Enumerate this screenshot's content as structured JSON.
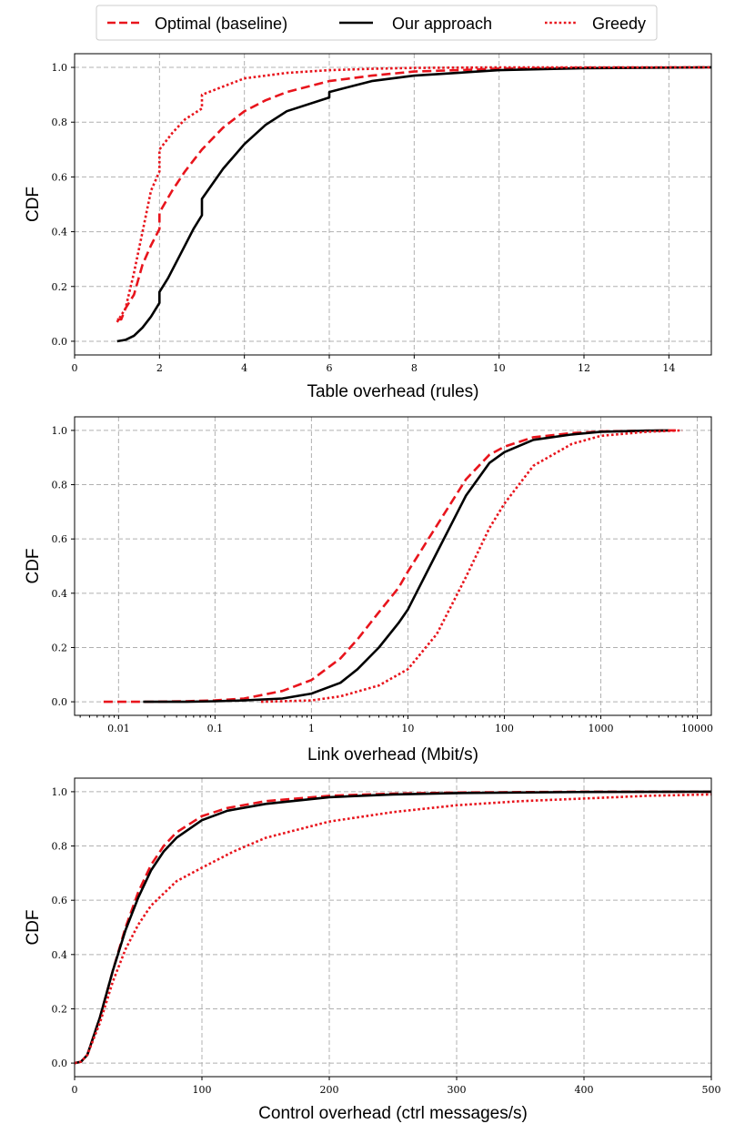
{
  "legend": {
    "items": [
      {
        "label": "Optimal (baseline)",
        "color": "#e8141c",
        "style": "dashed"
      },
      {
        "label": "Our approach",
        "color": "#000000",
        "style": "solid"
      },
      {
        "label": "Greedy",
        "color": "#e8141c",
        "style": "dotted"
      }
    ]
  },
  "chart_data": [
    {
      "type": "line",
      "title": "",
      "xlabel": "Table overhead (rules)",
      "ylabel": "CDF",
      "xscale": "linear",
      "xlim": [
        0,
        15
      ],
      "ylim": [
        -0.05,
        1.05
      ],
      "xticks": [
        0,
        2,
        4,
        6,
        8,
        10,
        12,
        14
      ],
      "xtick_labels": [
        "0",
        "2",
        "4",
        "6",
        "8",
        "10",
        "12",
        "14"
      ],
      "yticks": [
        0,
        0.2,
        0.4,
        0.6,
        0.8,
        1.0
      ],
      "ytick_labels": [
        "0.0",
        "0.2",
        "0.4",
        "0.6",
        "0.8",
        "1.0"
      ],
      "grid": true,
      "series": [
        {
          "name": "Optimal (baseline)",
          "color": "#e8141c",
          "style": "dashed",
          "x": [
            1,
            1.1,
            1.2,
            1.4,
            1.6,
            1.8,
            2.0,
            2.0,
            2.3,
            2.6,
            3.0,
            3.5,
            4.0,
            4.5,
            5.0,
            6.0,
            7.0,
            8.0,
            10.0,
            12.0,
            15.0
          ],
          "y": [
            0.08,
            0.08,
            0.12,
            0.17,
            0.28,
            0.35,
            0.41,
            0.47,
            0.55,
            0.62,
            0.7,
            0.78,
            0.84,
            0.88,
            0.91,
            0.95,
            0.97,
            0.985,
            0.995,
            0.999,
            1.0
          ]
        },
        {
          "name": "Our approach",
          "color": "#000000",
          "style": "solid",
          "x": [
            1,
            1.2,
            1.4,
            1.6,
            1.8,
            2.0,
            2.0,
            2.2,
            2.5,
            2.8,
            3.0,
            3.0,
            3.5,
            4.0,
            4.5,
            5.0,
            6.0,
            6.0,
            7.0,
            8.0,
            10.0,
            12.0,
            15.0
          ],
          "y": [
            0.0,
            0.005,
            0.02,
            0.05,
            0.09,
            0.14,
            0.18,
            0.23,
            0.32,
            0.41,
            0.46,
            0.52,
            0.63,
            0.72,
            0.79,
            0.84,
            0.89,
            0.91,
            0.95,
            0.97,
            0.99,
            0.997,
            1.0
          ]
        },
        {
          "name": "Greedy",
          "color": "#e8141c",
          "style": "dotted",
          "x": [
            1,
            1.2,
            1.4,
            1.6,
            1.8,
            2.0,
            2.0,
            2.3,
            2.6,
            3.0,
            3.0,
            3.5,
            4.0,
            5.0,
            6.0,
            7.0,
            8.0,
            10.0,
            15.0
          ],
          "y": [
            0.07,
            0.12,
            0.25,
            0.4,
            0.55,
            0.62,
            0.7,
            0.76,
            0.81,
            0.85,
            0.9,
            0.93,
            0.96,
            0.98,
            0.99,
            0.995,
            0.998,
            1.0,
            1.0
          ]
        }
      ]
    },
    {
      "type": "line",
      "title": "",
      "xlabel": "Link overhead (Mbit/s)",
      "ylabel": "CDF",
      "xscale": "log",
      "xlim": [
        0.0035,
        14000
      ],
      "ylim": [
        -0.05,
        1.05
      ],
      "xticks": [
        0.01,
        0.1,
        1,
        10,
        100,
        1000,
        10000
      ],
      "xtick_labels": [
        "0.01",
        "0.1",
        "1",
        "10",
        "100",
        "1000",
        "10000"
      ],
      "yticks": [
        0,
        0.2,
        0.4,
        0.6,
        0.8,
        1.0
      ],
      "ytick_labels": [
        "0.0",
        "0.2",
        "0.4",
        "0.6",
        "0.8",
        "1.0"
      ],
      "grid": true,
      "series": [
        {
          "name": "Optimal (baseline)",
          "color": "#e8141c",
          "style": "dashed",
          "x": [
            0.007,
            0.02,
            0.05,
            0.1,
            0.2,
            0.5,
            1,
            2,
            3,
            5,
            8,
            10,
            20,
            40,
            70,
            100,
            200,
            500,
            1000,
            3000,
            6000
          ],
          "y": [
            0.0,
            0.0,
            0.002,
            0.005,
            0.012,
            0.04,
            0.08,
            0.16,
            0.23,
            0.33,
            0.42,
            0.48,
            0.65,
            0.82,
            0.91,
            0.94,
            0.975,
            0.99,
            0.996,
            0.999,
            1.0
          ]
        },
        {
          "name": "Our approach",
          "color": "#000000",
          "style": "solid",
          "x": [
            0.018,
            0.05,
            0.1,
            0.2,
            0.5,
            1,
            2,
            3,
            5,
            8,
            10,
            20,
            40,
            70,
            100,
            200,
            500,
            1000,
            3000,
            5000
          ],
          "y": [
            0.0,
            0.0,
            0.002,
            0.005,
            0.012,
            0.03,
            0.07,
            0.12,
            0.2,
            0.29,
            0.34,
            0.55,
            0.76,
            0.88,
            0.92,
            0.965,
            0.985,
            0.995,
            0.999,
            1.0
          ]
        },
        {
          "name": "Greedy",
          "color": "#e8141c",
          "style": "dotted",
          "x": [
            0.3,
            1,
            2,
            5,
            10,
            20,
            40,
            70,
            100,
            200,
            500,
            1000,
            3000,
            7000
          ],
          "y": [
            0.0,
            0.005,
            0.02,
            0.06,
            0.12,
            0.25,
            0.46,
            0.64,
            0.73,
            0.87,
            0.95,
            0.98,
            0.995,
            1.0
          ]
        }
      ]
    },
    {
      "type": "line",
      "title": "",
      "xlabel": "Control overhead (ctrl messages/s)",
      "ylabel": "CDF",
      "xscale": "linear",
      "xlim": [
        0,
        500
      ],
      "ylim": [
        -0.05,
        1.05
      ],
      "xticks": [
        0,
        100,
        200,
        300,
        400,
        500
      ],
      "xtick_labels": [
        "0",
        "100",
        "200",
        "300",
        "400",
        "500"
      ],
      "yticks": [
        0,
        0.2,
        0.4,
        0.6,
        0.8,
        1.0
      ],
      "ytick_labels": [
        "0.0",
        "0.2",
        "0.4",
        "0.6",
        "0.8",
        "1.0"
      ],
      "grid": true,
      "series": [
        {
          "name": "Optimal (baseline)",
          "color": "#e8141c",
          "style": "dashed",
          "x": [
            0,
            5,
            10,
            15,
            20,
            30,
            40,
            50,
            60,
            70,
            80,
            100,
            120,
            150,
            200,
            250,
            300,
            400,
            500
          ],
          "y": [
            0.0,
            0.005,
            0.03,
            0.1,
            0.17,
            0.34,
            0.5,
            0.63,
            0.73,
            0.8,
            0.85,
            0.91,
            0.94,
            0.965,
            0.985,
            0.993,
            0.997,
            1.0,
            1.0
          ]
        },
        {
          "name": "Our approach",
          "color": "#000000",
          "style": "solid",
          "x": [
            0,
            5,
            10,
            15,
            20,
            30,
            40,
            50,
            60,
            70,
            80,
            100,
            120,
            150,
            200,
            250,
            300,
            400,
            500
          ],
          "y": [
            0.0,
            0.005,
            0.03,
            0.1,
            0.17,
            0.34,
            0.49,
            0.61,
            0.71,
            0.78,
            0.83,
            0.895,
            0.93,
            0.955,
            0.98,
            0.99,
            0.995,
            0.999,
            1.0
          ]
        },
        {
          "name": "Greedy",
          "color": "#e8141c",
          "style": "dotted",
          "x": [
            0,
            5,
            10,
            20,
            30,
            40,
            50,
            60,
            80,
            100,
            125,
            150,
            200,
            250,
            300,
            350,
            400,
            450,
            500
          ],
          "y": [
            0.0,
            0.005,
            0.03,
            0.15,
            0.3,
            0.42,
            0.51,
            0.58,
            0.67,
            0.72,
            0.78,
            0.83,
            0.89,
            0.925,
            0.95,
            0.965,
            0.975,
            0.985,
            0.99
          ]
        }
      ]
    }
  ]
}
